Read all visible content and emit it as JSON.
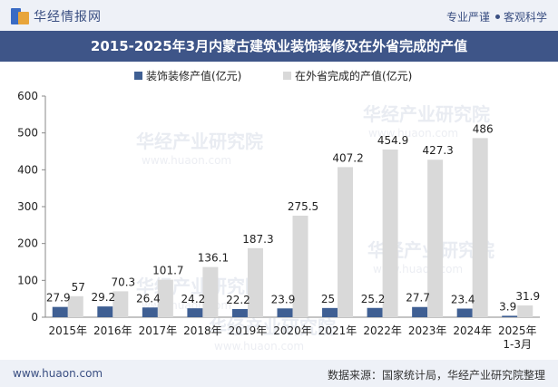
{
  "header": {
    "brand": "华经情报网",
    "tag1": "专业严谨",
    "tag2": "客观科学"
  },
  "title": "2015-2025年3月内蒙古建筑业装饰装修及在外省完成的产值",
  "footer": {
    "site": "www.huaon.com",
    "source": "数据来源：国家统计局，华经产业研究院整理"
  },
  "watermark": {
    "cn": "华经产业研究院",
    "url": "www.huaon.com"
  },
  "colors": {
    "series1": "#3f5f93",
    "series2": "#d9d9d9"
  },
  "chart_data": {
    "type": "bar",
    "categories": [
      "2015年",
      "2016年",
      "2017年",
      "2018年",
      "2019年",
      "2020年",
      "2021年",
      "2022年",
      "2023年",
      "2024年",
      "2025年\n1-3月"
    ],
    "series": [
      {
        "name": "装饰装修产值(亿元)",
        "values": [
          27.9,
          29.2,
          26.4,
          24.2,
          22.2,
          23.9,
          25,
          25.2,
          27.7,
          23.4,
          3.9
        ]
      },
      {
        "name": "在外省完成的产值(亿元)",
        "values": [
          57,
          70.3,
          101.7,
          136.1,
          187.3,
          275.5,
          407.2,
          454.9,
          427.3,
          486,
          31.9
        ]
      }
    ],
    "ylim": [
      0,
      600
    ],
    "yticks": [
      0,
      100,
      200,
      300,
      400,
      500,
      600
    ],
    "legend": "top-center",
    "grid": false
  }
}
